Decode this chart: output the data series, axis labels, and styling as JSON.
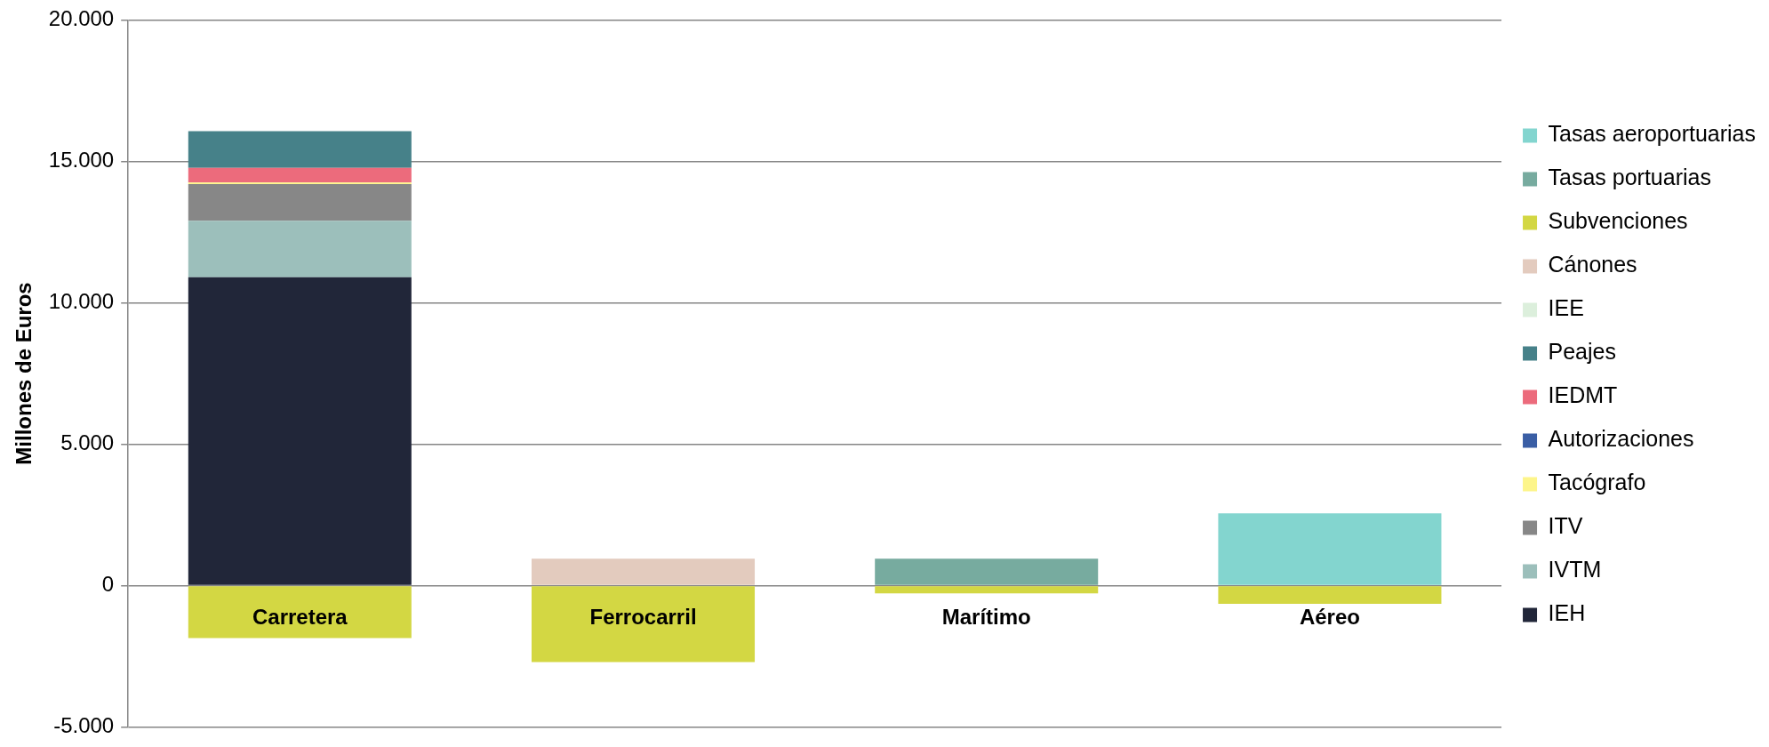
{
  "chart_data": {
    "type": "bar",
    "stacked": true,
    "ylabel": "Millones de Euros",
    "categories": [
      "Carretera",
      "Ferrocarril",
      "Marítimo",
      "Aéreo"
    ],
    "ylim": [
      -5000,
      20000
    ],
    "yticks": [
      {
        "value": -5000,
        "label": "-5.000"
      },
      {
        "value": 0,
        "label": "0"
      },
      {
        "value": 5000,
        "label": "5.000"
      },
      {
        "value": 10000,
        "label": "10.000"
      },
      {
        "value": 15000,
        "label": "15.000"
      },
      {
        "value": 20000,
        "label": "20.000"
      }
    ],
    "grid": "y",
    "legend": "right",
    "series": [
      {
        "name": "IEH",
        "color": "#212639",
        "values": [
          10900,
          null,
          null,
          null
        ]
      },
      {
        "name": "IVTM",
        "color": "#9cbfbb",
        "values": [
          2000,
          null,
          null,
          null
        ]
      },
      {
        "name": "ITV",
        "color": "#878787",
        "values": [
          1300,
          null,
          null,
          null
        ]
      },
      {
        "name": "Tacógrafo",
        "color": "#fdf58a",
        "values": [
          50,
          null,
          null,
          null
        ]
      },
      {
        "name": "Autorizaciones",
        "color": "#3a5ea5",
        "values": [
          null,
          null,
          null,
          null
        ]
      },
      {
        "name": "IEDMT",
        "color": "#ec6b7c",
        "values": [
          520,
          null,
          null,
          null
        ]
      },
      {
        "name": "Peajes",
        "color": "#468189",
        "values": [
          1300,
          null,
          null,
          null
        ]
      },
      {
        "name": "IEE",
        "color": "#dcefdc",
        "values": [
          null,
          null,
          null,
          null
        ]
      },
      {
        "name": "Cánones",
        "color": "#e3cbbe",
        "values": [
          null,
          950,
          null,
          null
        ]
      },
      {
        "name": "Subvenciones",
        "color": "#d3d743",
        "values": [
          -1850,
          -2700,
          -270,
          -640
        ]
      },
      {
        "name": "Tasas portuarias",
        "color": "#77ab9f",
        "values": [
          null,
          null,
          950,
          null
        ]
      },
      {
        "name": "Tasas aeroportuarias",
        "color": "#83d5cf",
        "values": [
          null,
          null,
          null,
          2560
        ]
      }
    ]
  }
}
